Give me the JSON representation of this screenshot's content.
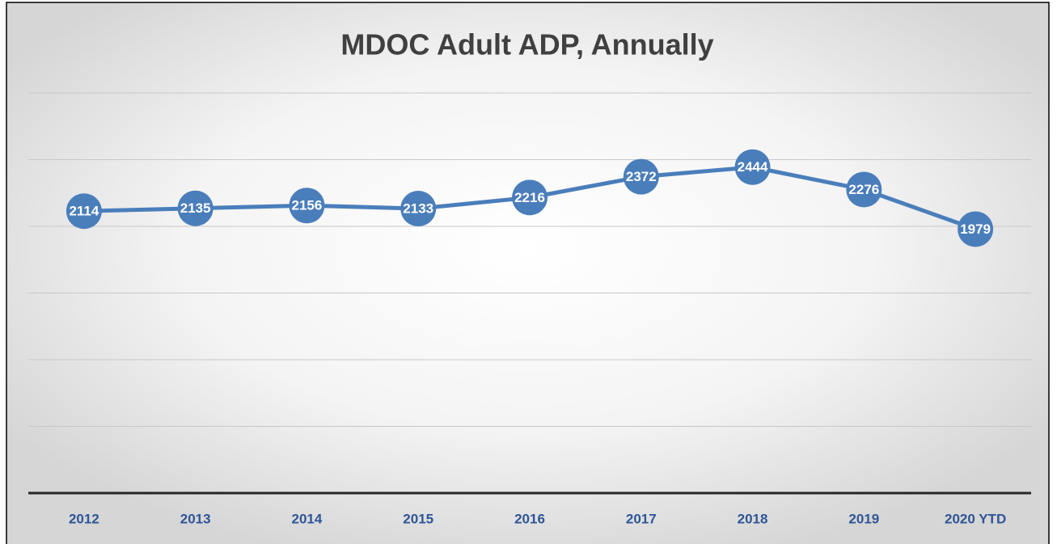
{
  "chart_data": {
    "type": "line",
    "title": "MDOC Adult ADP, Annually",
    "categories": [
      "2012",
      "2013",
      "2014",
      "2015",
      "2016",
      "2017",
      "2018",
      "2019",
      "2020 YTD"
    ],
    "series": [
      {
        "name": "ADP",
        "color": "#4a7ebb",
        "values": [
          2114,
          2135,
          2156,
          2133,
          2216,
          2372,
          2444,
          2276,
          1979
        ]
      }
    ],
    "ylim": [
      0,
      3000
    ],
    "yticks": [
      0,
      500,
      1000,
      1500,
      2000,
      2500,
      3000
    ],
    "grid": true
  }
}
